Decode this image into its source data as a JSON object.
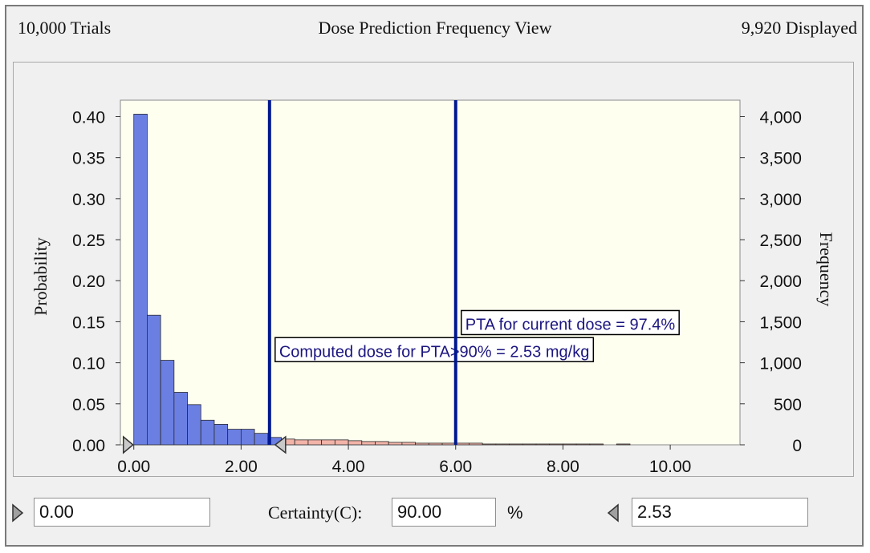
{
  "header": {
    "trials": "10,000 Trials",
    "title": "Dose Prediction Frequency View",
    "displayed": "9,920 Displayed"
  },
  "chart_data": {
    "type": "bar",
    "ylabel_left": "Probability",
    "ylabel_right": "Frequency",
    "xlim": [
      -0.25,
      11.3
    ],
    "ylim": [
      0,
      0.42
    ],
    "x_ticks": [
      0,
      2,
      4,
      6,
      8,
      10
    ],
    "x_tick_labels": [
      "0.00",
      "2.00",
      "4.00",
      "6.00",
      "8.00",
      "10.00"
    ],
    "y_ticks_left": [
      0,
      0.05,
      0.1,
      0.15,
      0.2,
      0.25,
      0.3,
      0.35,
      0.4
    ],
    "y_tick_labels_left": [
      "0.00",
      "0.05",
      "0.10",
      "0.15",
      "0.20",
      "0.25",
      "0.30",
      "0.35",
      "0.40"
    ],
    "y_ticks_right": [
      0,
      500,
      1000,
      1500,
      2000,
      2500,
      3000,
      3500,
      4000
    ],
    "y_tick_labels_right": [
      "0",
      "500",
      "1,000",
      "1,500",
      "2,000",
      "2,500",
      "3,000",
      "3,500",
      "4,000"
    ],
    "bin_width": 0.25,
    "bins_certainty_range": {
      "color": "#6b7fe3",
      "x_start": [
        0.0,
        0.25,
        0.5,
        0.75,
        1.0,
        1.25,
        1.5,
        1.75,
        2.0,
        2.25,
        2.5
      ],
      "values": [
        0.403,
        0.158,
        0.103,
        0.064,
        0.049,
        0.03,
        0.025,
        0.019,
        0.019,
        0.014,
        0.009
      ]
    },
    "bins_outside_range": {
      "color": "#f2b3a8",
      "x_start": [
        2.75,
        3.0,
        3.25,
        3.5,
        3.75,
        4.0,
        4.25,
        4.5,
        4.75,
        5.0,
        5.25,
        5.5,
        5.75,
        6.0,
        6.25,
        6.5,
        6.75,
        7.0,
        7.25,
        7.5,
        7.75,
        8.0,
        8.25,
        8.5,
        8.75,
        9.0
      ],
      "values": [
        0.007,
        0.006,
        0.006,
        0.006,
        0.006,
        0.005,
        0.004,
        0.004,
        0.003,
        0.003,
        0.002,
        0.002,
        0.002,
        0.002,
        0.002,
        0.001,
        0.001,
        0.001,
        0.001,
        0.001,
        0.001,
        0.001,
        0.001,
        0.001,
        0.0,
        0.001
      ]
    },
    "vertical_lines": [
      {
        "x": 2.53,
        "color": "#00188f",
        "label": "Computed dose for PTA>90% = 2.53 mg/kg",
        "label_y": 0.115
      },
      {
        "x": 6.0,
        "color": "#00188f",
        "label": "PTA for current dose = 97.4%",
        "label_y": 0.148
      }
    ],
    "plot_background": "#fffff0",
    "grid": false
  },
  "controls": {
    "lower_value": "0.00",
    "certainty_label": "Certainty(C):",
    "certainty_value": "90.00",
    "percent": "%",
    "upper_value": "2.53"
  }
}
